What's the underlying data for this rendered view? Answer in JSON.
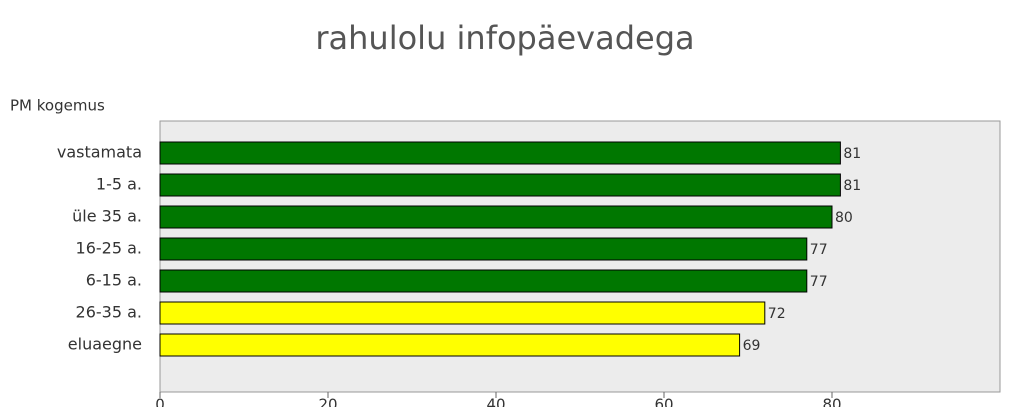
{
  "chart_data": {
    "type": "bar",
    "orientation": "horizontal",
    "title": "rahulolu infopäevadega",
    "y_label": "PM kogemus",
    "categories": [
      "vastamata",
      "1-5 a.",
      "üle 35 a.",
      "16-25 a.",
      "6-15 a.",
      "26-35 a.",
      "eluaegne"
    ],
    "values": [
      81,
      81,
      80,
      77,
      77,
      72,
      69
    ],
    "colors": [
      "#007700",
      "#007700",
      "#007700",
      "#007700",
      "#007700",
      "#ffff00",
      "#ffff00"
    ],
    "xlim": [
      0,
      100
    ],
    "xticks": [
      0,
      20,
      40,
      60,
      80
    ]
  }
}
